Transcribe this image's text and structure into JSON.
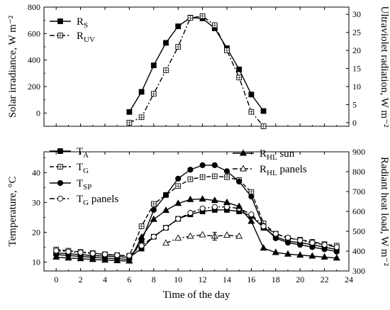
{
  "chart_data": [
    {
      "type": "line",
      "xlabel": "",
      "ylabel": "Solar irradiance, W m⁻²",
      "y2label": "Ultraviolet radiation, W m⁻²",
      "xlim": [
        -1,
        24
      ],
      "ylim": [
        -100,
        800
      ],
      "y2lim": [
        -1,
        32
      ],
      "xticks": [
        0,
        2,
        4,
        6,
        8,
        10,
        12,
        14,
        16,
        18,
        20,
        22,
        24
      ],
      "yticks": [
        0,
        200,
        400,
        600,
        800
      ],
      "y2ticks": [
        0,
        5,
        10,
        15,
        20,
        25,
        30
      ],
      "legend_position": "top-left",
      "series": [
        {
          "name": "R",
          "name_sub": "S",
          "axis": "left",
          "style": "solid",
          "marker": "filled-square",
          "x": [
            6,
            7,
            8,
            9,
            10,
            11,
            12,
            13,
            14,
            15,
            16,
            17
          ],
          "y": [
            8,
            160,
            360,
            530,
            655,
            720,
            715,
            640,
            490,
            330,
            140,
            15
          ]
        },
        {
          "name": "R",
          "name_sub": "UV",
          "axis": "right",
          "style": "dash-dot",
          "marker": "open-crossed-square",
          "x": [
            6,
            7,
            8,
            9,
            10,
            11,
            12,
            13,
            14,
            15,
            16,
            17
          ],
          "y": [
            0,
            1.5,
            8,
            14.5,
            21,
            29,
            29.5,
            27,
            20,
            12.5,
            3,
            -1
          ]
        }
      ]
    },
    {
      "type": "line",
      "xlabel": "Time of the day",
      "ylabel": "Temperature, °C",
      "y2label": "Radiant heat load, W m⁻²",
      "xlim": [
        -1,
        24
      ],
      "ylim": [
        7,
        47
      ],
      "y2lim": [
        300,
        900
      ],
      "xticks": [
        0,
        2,
        4,
        6,
        8,
        10,
        12,
        14,
        16,
        18,
        20,
        22,
        24
      ],
      "yticks": [
        10,
        20,
        30,
        40
      ],
      "y2ticks": [
        300,
        400,
        500,
        600,
        700,
        800,
        900
      ],
      "legend_position": "top-left and top-right",
      "series": [
        {
          "name": "T",
          "name_sub": "A",
          "axis": "left",
          "style": "solid",
          "marker": "filled-square",
          "x": [
            0,
            1,
            2,
            3,
            4,
            5,
            6,
            7,
            8,
            9,
            10,
            11,
            12,
            13,
            14,
            15,
            16,
            17,
            18,
            19,
            20,
            21,
            22,
            23
          ],
          "y": [
            13,
            12.8,
            12.5,
            12.2,
            12,
            11.8,
            11.6,
            14.5,
            18.5,
            21.5,
            24.5,
            26,
            27,
            27.5,
            27.5,
            27,
            25.5,
            21.5,
            18.5,
            17,
            16.5,
            15.8,
            15,
            14.2
          ]
        },
        {
          "name": "T",
          "name_sub": "G",
          "axis": "left",
          "style": "dash",
          "marker": "open-crossed-square",
          "x": [
            0,
            1,
            2,
            3,
            4,
            5,
            6,
            7,
            8,
            9,
            10,
            11,
            12,
            13,
            14,
            15,
            16,
            17,
            18,
            19,
            20,
            21,
            22,
            23
          ],
          "y": [
            14.2,
            13.8,
            13.4,
            13,
            12.6,
            12.3,
            12.1,
            22,
            29.5,
            32.5,
            35.5,
            37.8,
            38.5,
            38.8,
            38.5,
            37.5,
            33.5,
            23,
            19.5,
            18,
            17.5,
            16.8,
            16,
            15.5
          ]
        },
        {
          "name": "T",
          "name_sub": "SP",
          "axis": "left",
          "style": "solid",
          "marker": "filled-circle",
          "x": [
            0,
            1,
            2,
            3,
            4,
            5,
            6,
            7,
            8,
            9,
            10,
            11,
            12,
            13,
            14,
            15,
            16,
            17,
            18,
            19,
            20,
            21,
            22,
            23
          ],
          "y": [
            12.5,
            12.2,
            11.9,
            11.6,
            11.3,
            11.1,
            10.9,
            17,
            27.5,
            32.5,
            38,
            41,
            42.5,
            42.5,
            40.5,
            37,
            32,
            22,
            18,
            16.5,
            15.8,
            15,
            14.3,
            13.5
          ]
        },
        {
          "name": "T",
          "name_sub": "G",
          "name_suffix": " panels",
          "axis": "left",
          "style": "dash-dot",
          "marker": "open-circle",
          "x": [
            0,
            1,
            2,
            3,
            4,
            5,
            6,
            7,
            8,
            9,
            10,
            11,
            12,
            13,
            14,
            15,
            16,
            17,
            18,
            19,
            20,
            21,
            22,
            23
          ],
          "y": [
            13.8,
            13.5,
            13.2,
            12.9,
            12.6,
            12.3,
            12.1,
            15.5,
            18.5,
            21.5,
            24.5,
            26.5,
            28,
            28.5,
            28.5,
            28,
            26,
            22,
            19.5,
            18.2,
            17.3,
            16.5,
            15.8,
            15
          ]
        },
        {
          "name": "R",
          "name_sub": "HL",
          "name_suffix": " sun",
          "axis": "right",
          "style": "solid",
          "marker": "filled-triangle",
          "x": [
            0,
            1,
            2,
            3,
            4,
            5,
            6,
            7,
            8,
            9,
            10,
            11,
            12,
            13,
            14,
            15,
            16,
            17,
            18,
            19,
            20,
            21,
            22,
            23
          ],
          "y": [
            370,
            365,
            362,
            358,
            355,
            352,
            350,
            470,
            560,
            605,
            640,
            660,
            662,
            655,
            645,
            625,
            550,
            415,
            393,
            385,
            380,
            375,
            370,
            365
          ]
        },
        {
          "name": "R",
          "name_sub": "HL",
          "name_suffix": " panels",
          "axis": "right",
          "style": "dash-dot",
          "marker": "open-triangle",
          "x": [
            9,
            10,
            11,
            12,
            13,
            14,
            15
          ],
          "y": [
            440,
            465,
            475,
            482,
            475,
            480,
            475
          ]
        }
      ]
    }
  ]
}
